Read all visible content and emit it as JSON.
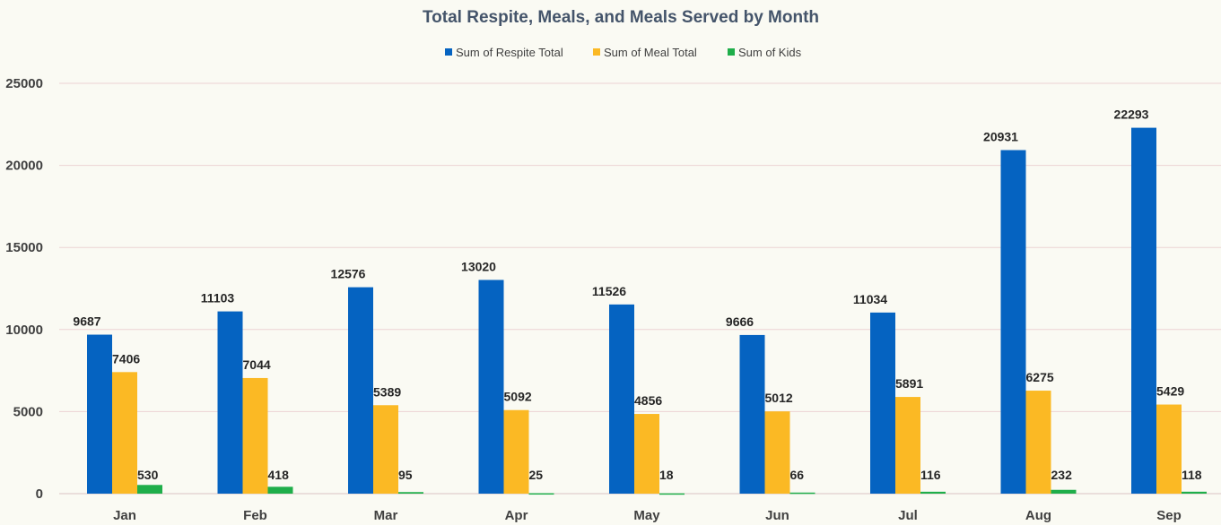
{
  "chart_data": {
    "type": "bar",
    "title": "Total Respite, Meals, and Meals Served by Month",
    "categories": [
      "Jan",
      "Feb",
      "Mar",
      "Apr",
      "May",
      "Jun",
      "Jul",
      "Aug",
      "Sep"
    ],
    "series": [
      {
        "name": "Sum of Respite Total",
        "color": "#0563c1",
        "values": [
          9687,
          11103,
          12576,
          13020,
          11526,
          9666,
          11034,
          20931,
          22293
        ]
      },
      {
        "name": "Sum of Meal Total",
        "color": "#fbb924",
        "values": [
          7406,
          7044,
          5389,
          5092,
          4856,
          5012,
          5891,
          6275,
          5429
        ]
      },
      {
        "name": "Sum of Kids",
        "color": "#1fae4a",
        "values": [
          530,
          418,
          95,
          25,
          18,
          66,
          116,
          232,
          118
        ]
      }
    ],
    "ylim": [
      0,
      25000
    ],
    "yticks": [
      "0",
      "5000",
      "10000",
      "15000",
      "20000",
      "25000"
    ],
    "grid": true,
    "legend_position": "top"
  }
}
